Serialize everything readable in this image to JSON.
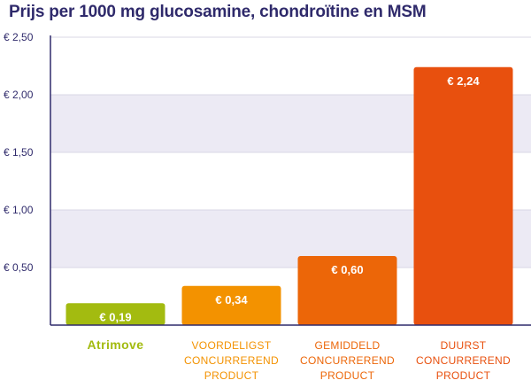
{
  "chart_data": {
    "type": "bar",
    "title": "Prijs per 1000 mg glucosamine, chondroïtine en MSM",
    "xlabel": "",
    "ylabel": "",
    "ylim": [
      0,
      2.5
    ],
    "yticks": [
      {
        "value": 0.5,
        "label": "€ 0,50"
      },
      {
        "value": 1.0,
        "label": "€ 1,00"
      },
      {
        "value": 1.5,
        "label": "€ 1,50"
      },
      {
        "value": 2.0,
        "label": "€ 2,00"
      },
      {
        "value": 2.5,
        "label": "€ 2,50"
      }
    ],
    "grid": true,
    "categories": [
      {
        "lines": [
          "Atrimove"
        ],
        "brand": true
      },
      {
        "lines": [
          "VOORDELIGST",
          "CONCURREREND",
          "PRODUCT"
        ]
      },
      {
        "lines": [
          "GEMIDDELD",
          "CONCURREREND",
          "PRODUCT"
        ]
      },
      {
        "lines": [
          "DUURST",
          "CONCURREREND",
          "PRODUCT"
        ]
      }
    ],
    "values": [
      0.19,
      0.34,
      0.6,
      2.24
    ],
    "value_labels": [
      "€ 0,19",
      "€ 0,34",
      "€ 0,60",
      "€ 2,24"
    ],
    "colors": {
      "bars": [
        "#a3bb10",
        "#f39200",
        "#ec6608",
        "#e8500e"
      ],
      "category_text": [
        "#a3bb10",
        "#f39200",
        "#ec6608",
        "#e8500e"
      ],
      "band": "#eceaf4",
      "axis": "#2f2a6b",
      "grid": "#d9d7e6",
      "title": "#2f2a6b"
    }
  }
}
